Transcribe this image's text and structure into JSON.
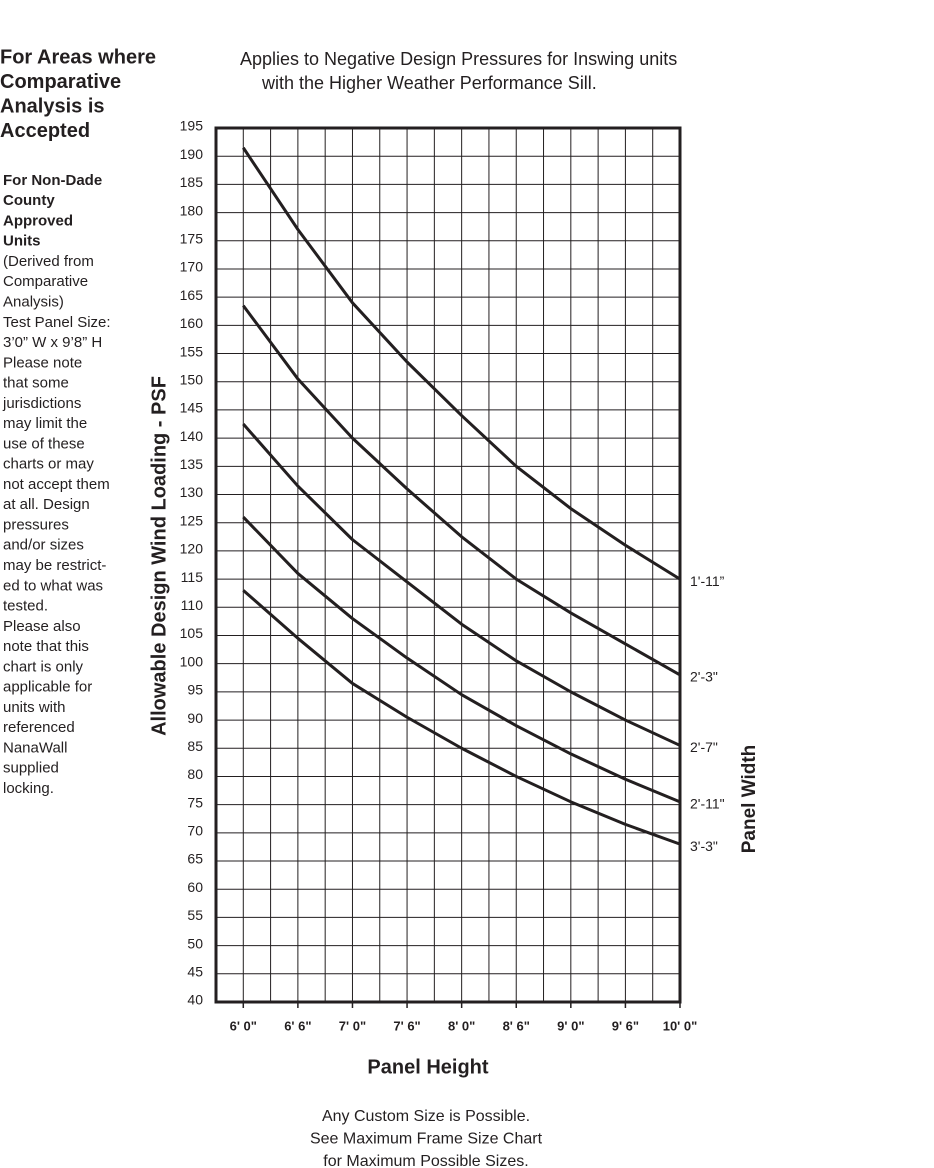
{
  "sidebar": {
    "heading": [
      "For Areas where",
      "Comparative",
      "Analysis is",
      "Accepted"
    ],
    "note_bold": [
      "For Non-Dade",
      "County",
      "Approved",
      "Units"
    ],
    "note": [
      "(Derived from",
      "Comparative",
      "Analysis)",
      "Test Panel Size:",
      "3’0” W x 9’8” H",
      "Please note",
      "that some",
      "jurisdictions",
      "may limit the",
      "use of these",
      "charts or may",
      "not accept them",
      "at all. Design",
      "pressures",
      "and/or sizes",
      "may be restrict-",
      "ed to what was",
      "tested.",
      "Please also",
      "note that this",
      "chart is only",
      "applicable for",
      "units with",
      "referenced",
      "NanaWall",
      "supplied",
      "locking."
    ]
  },
  "chart_data": {
    "type": "line",
    "subtitle": [
      "Applies to Negative Design Pressures for Inswing units",
      "with the Higher Weather Performance Sill."
    ],
    "y_label": "Allowable Design Wind Loading - PSF",
    "x_label": "Panel Height",
    "legend_title": "Panel Width",
    "x": [
      72,
      78,
      84,
      90,
      96,
      102,
      108,
      114,
      120
    ],
    "xlim": [
      69,
      120
    ],
    "xticks": [
      {
        "value": 72,
        "label": "6' 0\""
      },
      {
        "value": 78,
        "label": "6' 6\""
      },
      {
        "value": 84,
        "label": "7' 0\""
      },
      {
        "value": 90,
        "label": "7' 6\""
      },
      {
        "value": 96,
        "label": "8' 0\""
      },
      {
        "value": 102,
        "label": "8' 6\""
      },
      {
        "value": 108,
        "label": "9' 0\""
      },
      {
        "value": 114,
        "label": "9' 6\""
      },
      {
        "value": 120,
        "label": "10' 0\""
      }
    ],
    "x_gridlines": [
      69,
      72,
      75,
      78,
      81,
      84,
      87,
      90,
      93,
      96,
      99,
      102,
      105,
      108,
      111,
      114,
      117,
      120
    ],
    "ylim": [
      40,
      195
    ],
    "yticks": [
      40,
      45,
      50,
      55,
      60,
      65,
      70,
      75,
      80,
      85,
      90,
      95,
      100,
      105,
      110,
      115,
      120,
      125,
      130,
      135,
      140,
      145,
      150,
      155,
      160,
      165,
      170,
      175,
      180,
      185,
      190,
      195
    ],
    "grid": true,
    "series": [
      {
        "name": "1'-11”",
        "color": "#231f20",
        "values": [
          191.5,
          177,
          164,
          153.5,
          144,
          135,
          127.5,
          121,
          115
        ]
      },
      {
        "name": "2'-3\"",
        "color": "#231f20",
        "values": [
          163.5,
          150.5,
          140,
          131,
          122.5,
          115,
          109,
          103.5,
          98
        ]
      },
      {
        "name": "2'-7\"",
        "color": "#231f20",
        "values": [
          142.5,
          131.5,
          122,
          114.5,
          107,
          100.5,
          95,
          90,
          85.5
        ]
      },
      {
        "name": "2'-11\"",
        "color": "#231f20",
        "values": [
          126,
          116,
          108,
          101,
          94.5,
          89,
          84,
          79.5,
          75.5
        ]
      },
      {
        "name": "3'-3\"",
        "color": "#231f20",
        "values": [
          113,
          104.5,
          96.5,
          90.5,
          85,
          80,
          75.5,
          71.5,
          68
        ]
      }
    ]
  },
  "footer": [
    "Any Custom Size is Possible.",
    "See Maximum Frame Size Chart",
    "for Maximum Possible Sizes."
  ]
}
